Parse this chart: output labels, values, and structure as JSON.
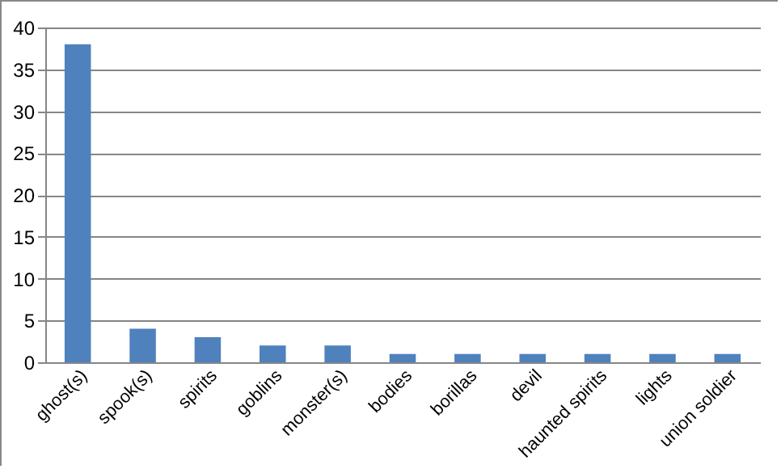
{
  "chart_data": {
    "type": "bar",
    "categories": [
      "ghost(s)",
      "spook(s)",
      "spirits",
      "goblins",
      "monster(s)",
      "bodies",
      "borillas",
      "devil",
      "haunted spirits",
      "lights",
      "union soldier"
    ],
    "values": [
      38,
      4,
      3,
      2,
      2,
      1,
      1,
      1,
      1,
      1,
      1
    ],
    "color": "#4f81bd",
    "ylim": [
      0,
      40
    ],
    "yticks": [
      0,
      5,
      10,
      15,
      20,
      25,
      30,
      35,
      40
    ],
    "grid": "y"
  }
}
